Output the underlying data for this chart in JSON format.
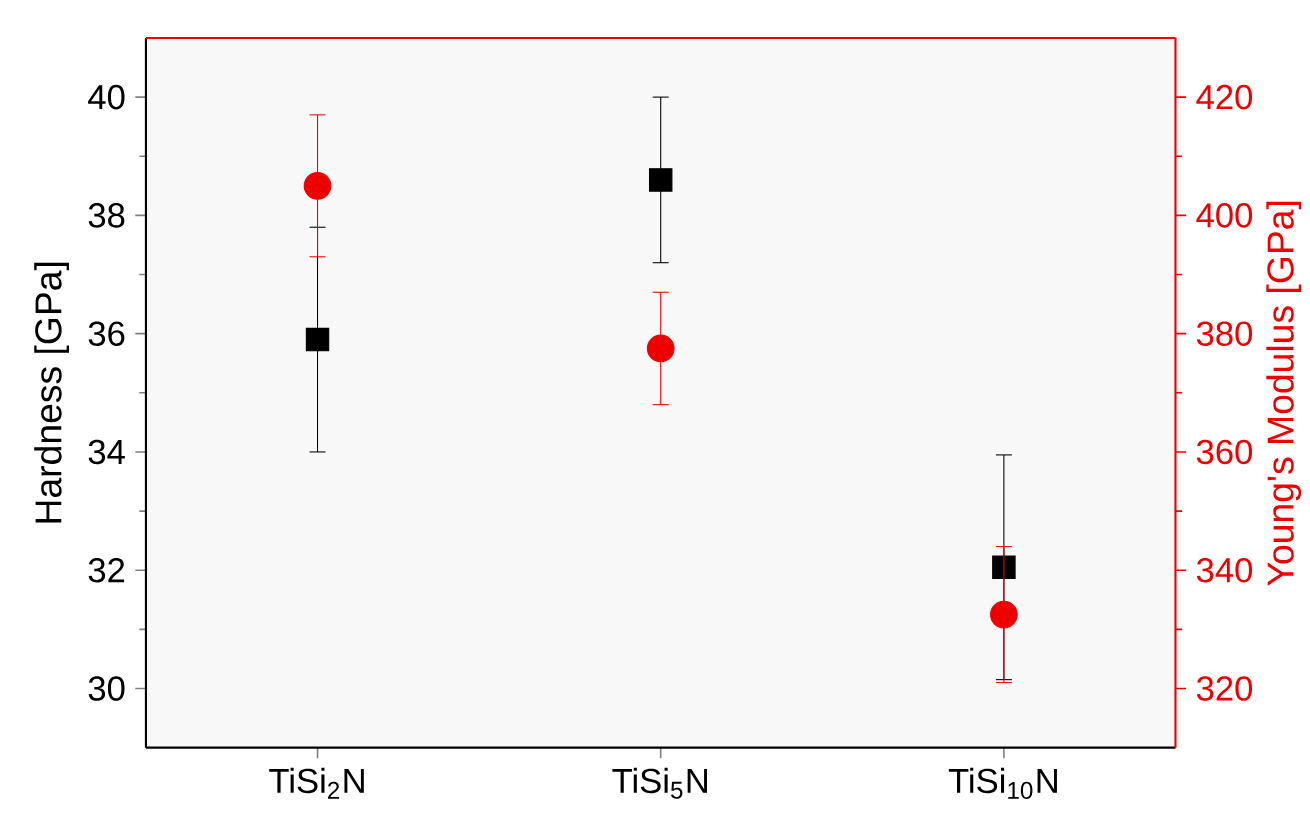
{
  "chart_data": {
    "type": "scatter",
    "xlabel": null,
    "ylabel": "Hardness [GPa]",
    "y2label": "Young's Modulus [GPa]",
    "categories": [
      "TiSi$_{2}$N",
      "TiSi$_{5}$N",
      "TiSi$_{10}$N"
    ],
    "series": [
      {
        "color": "#000000",
        "marker": "square",
        "values": [
          35.9,
          38.6,
          32.05
        ],
        "errors": [
          1.9,
          1.4,
          1.9
        ]
      },
      {
        "color": "#ee0000",
        "marker": "circle",
        "axis": "y2",
        "values": [
          405,
          377.5,
          332.5
        ],
        "errors": [
          12,
          9.5,
          11.5
        ]
      }
    ],
    "ylim": [
      29,
      41
    ],
    "yticks": [
      30,
      32,
      34,
      36,
      38,
      40
    ],
    "y2lim": [
      310,
      430
    ],
    "y2ticks": [
      320,
      340,
      360,
      380,
      400,
      420
    ]
  }
}
